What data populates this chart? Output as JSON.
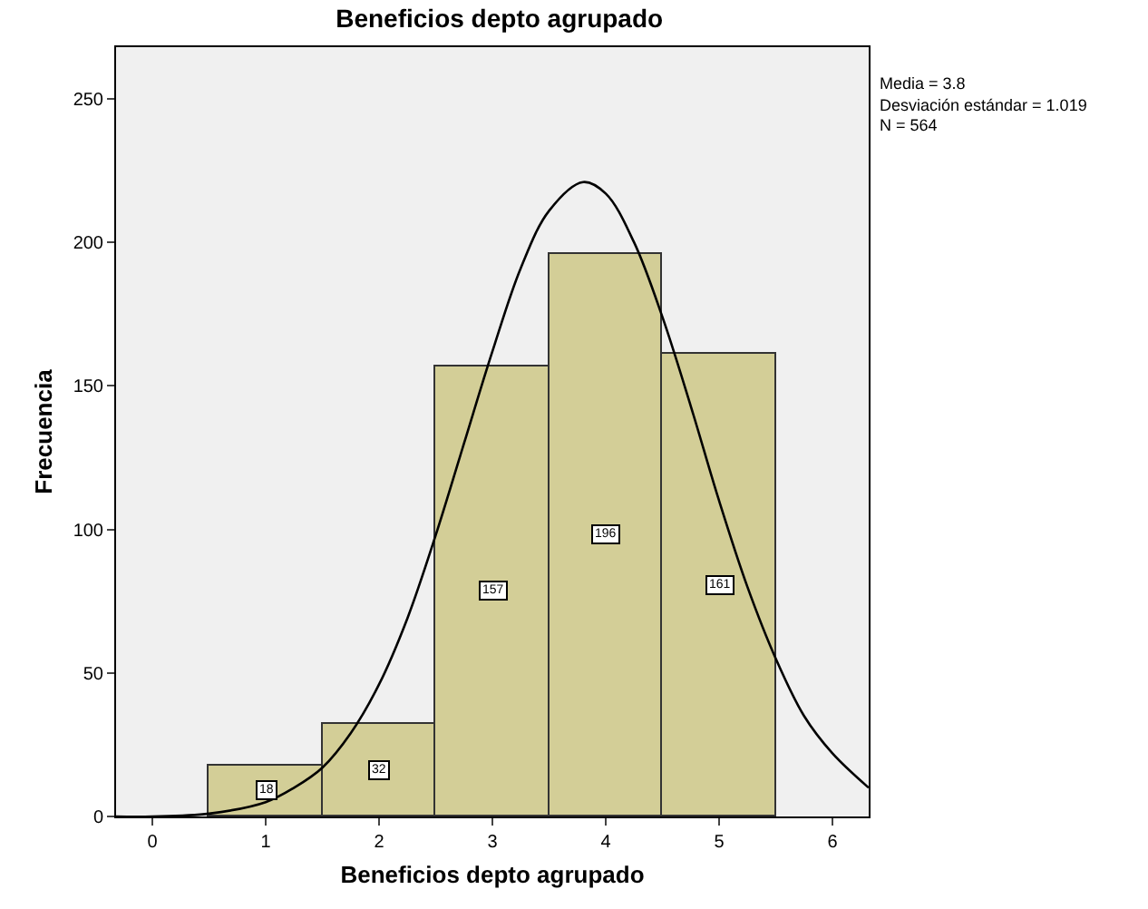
{
  "chart_data": {
    "type": "histogram",
    "title": "Beneficios depto agrupado",
    "xlabel": "Beneficios depto agrupado",
    "ylabel": "Frecuencia",
    "bins": [
      0.5,
      1.5,
      2.5,
      3.5,
      4.5,
      5.5
    ],
    "values": [
      18,
      32,
      157,
      196,
      161
    ],
    "color": "#d3ce97",
    "value_labels": [
      "18",
      "32",
      "157",
      "196",
      "161"
    ],
    "series": [
      {
        "type": "line",
        "color": "#000000",
        "x": [
          -0.32,
          0,
          0.5,
          1,
          1.25,
          1.5,
          1.75,
          2,
          2.25,
          2.5,
          2.75,
          3,
          3.25,
          3.5,
          3.8,
          4,
          4.25,
          4.5,
          4.75,
          5,
          5.25,
          5.5,
          5.75,
          6,
          6.32
        ],
        "values": [
          0,
          0,
          1,
          5,
          10,
          17,
          29,
          46,
          69,
          98,
          130,
          162,
          191,
          211,
          221,
          217,
          200,
          174,
          143,
          110,
          80,
          55,
          35,
          22,
          10
        ]
      }
    ],
    "xlim": [
      -0.32,
      6.32
    ],
    "xticks": [
      0,
      1,
      2,
      3,
      4,
      5,
      6
    ],
    "ylim": [
      0,
      268
    ],
    "yticks": [
      0,
      50,
      100,
      150,
      200,
      250
    ],
    "grid": false,
    "annotations": [
      "Media = 3.8",
      "Desviación estándar = 1.019",
      "N = 564"
    ]
  }
}
